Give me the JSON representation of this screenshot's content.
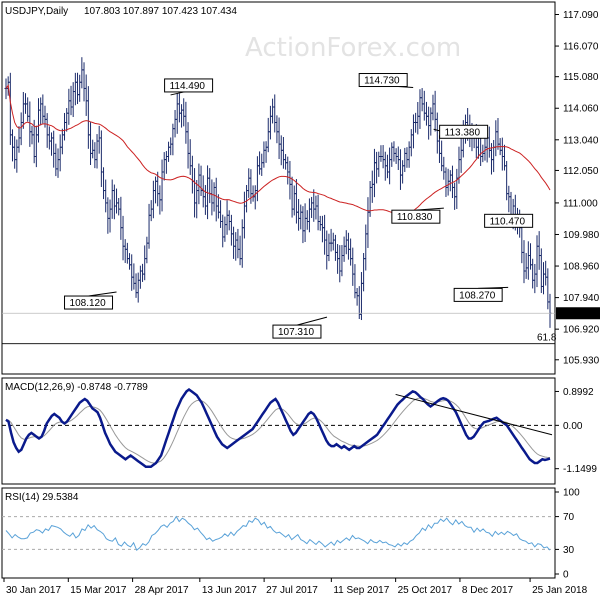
{
  "chart_data": {
    "type": "ohlc",
    "watermark": "ActionForex.com",
    "price_panel": {
      "title": "USDJPY,Daily",
      "ohlc_text": "107.803 107.897 107.423 107.434",
      "y_ticks": [
        "117.090",
        "116.070",
        "115.080",
        "114.060",
        "113.040",
        "112.050",
        "111.000",
        "109.980",
        "108.960",
        "107.940",
        "106.920",
        "105.930"
      ],
      "ylim": [
        105.6,
        117.3
      ],
      "current_price": "107.434",
      "fib_label": "61.8",
      "fib_level": 106.45,
      "moving_average_color": "#cc2222",
      "bar_color": "#1a2a6a",
      "annotations": [
        {
          "text": "114.490",
          "x": "2017-05-24",
          "y": 114.49
        },
        {
          "text": "108.120",
          "x": "2017-04-17",
          "y": 108.12
        },
        {
          "text": "107.310",
          "x": "2017-09-08",
          "y": 107.31
        },
        {
          "text": "114.730",
          "x": "2017-11-06",
          "y": 114.73
        },
        {
          "text": "113.380",
          "x": "2017-11-20",
          "y": 113.38
        },
        {
          "text": "110.830",
          "x": "2017-11-27",
          "y": 110.83
        },
        {
          "text": "110.470",
          "x": "2017-12-29",
          "y": 110.47
        },
        {
          "text": "108.270",
          "x": "2018-01-10",
          "y": 108.27
        }
      ]
    },
    "macd_panel": {
      "label": "MACD(12,26,9) -0.8748 -0.7789",
      "y_ticks": [
        "0.8992",
        "0.00",
        "-1.1499"
      ],
      "ylim": [
        -1.45,
        1.15
      ],
      "macd_color": "#0a1a8c",
      "signal_color": "#999999",
      "trendline_start": {
        "x": "2017-10-25",
        "y": 0.82
      },
      "trendline_end": {
        "x": "2018-02-09",
        "y": -0.25
      }
    },
    "rsi_panel": {
      "label": "RSI(14) 29.5384",
      "y_ticks": [
        "100",
        "70",
        "30",
        "0"
      ],
      "ylim": [
        0,
        100
      ],
      "levels": [
        70,
        30
      ],
      "rsi_color": "#5aa2d8"
    },
    "x_ticks": [
      "30 Jan 2017",
      "15 Mar 2017",
      "28 Apr 2017",
      "13 Jun 2017",
      "27 Jul 2017",
      "11 Sep 2017",
      "25 Oct 2017",
      "8 Dec 2017",
      "25 Jan 2018"
    ],
    "close": [
      114.7,
      114.9,
      113.2,
      112.8,
      112.4,
      112.8,
      113.1,
      113.6,
      114.2,
      114.2,
      113.8,
      113.3,
      113.2,
      112.5,
      113.2,
      114.0,
      114.2,
      113.8,
      113.7,
      113.2,
      113.0,
      113.1,
      112.6,
      112.1,
      112.4,
      112.8,
      113.2,
      113.6,
      113.9,
      114.3,
      114.1,
      114.6,
      114.9,
      114.5,
      114.9,
      115.3,
      114.7,
      114.3,
      113.2,
      112.6,
      112.7,
      112.4,
      113.0,
      113.1,
      112.0,
      111.4,
      111.0,
      110.5,
      110.8,
      111.4,
      110.9,
      111.0,
      110.8,
      110.2,
      109.6,
      109.5,
      109.2,
      109.0,
      108.6,
      108.4,
      108.1,
      108.5,
      108.8,
      108.7,
      109.2,
      109.7,
      110.6,
      110.8,
      111.4,
      111.7,
      111.3,
      111.1,
      112.0,
      112.4,
      112.5,
      112.8,
      112.9,
      113.4,
      113.7,
      114.2,
      113.9,
      114.0,
      113.8,
      113.3,
      112.6,
      112.2,
      111.7,
      111.0,
      111.4,
      111.9,
      111.4,
      111.2,
      110.9,
      111.8,
      111.3,
      111.0,
      111.5,
      110.9,
      110.7,
      110.4,
      109.9,
      110.3,
      110.6,
      110.4,
      110.0,
      109.6,
      109.8,
      109.5,
      109.2,
      110.2,
      110.9,
      111.4,
      111.8,
      111.3,
      111.2,
      111.4,
      112.2,
      112.1,
      112.3,
      112.7,
      112.8,
      113.3,
      113.8,
      114.1,
      113.6,
      113.3,
      112.9,
      112.7,
      112.4,
      112.3,
      112.0,
      111.6,
      110.8,
      111.3,
      110.7,
      110.5,
      110.7,
      110.1,
      110.5,
      110.4,
      110.8,
      111.0,
      110.8,
      110.9,
      110.4,
      110.3,
      110.2,
      109.8,
      109.3,
      109.7,
      109.7,
      109.8,
      109.4,
      109.2,
      108.8,
      109.3,
      109.6,
      109.8,
      109.5,
      109.2,
      108.7,
      108.1,
      108.0,
      107.4,
      108.4,
      109.2,
      110.0,
      110.7,
      111.5,
      111.6,
      112.3,
      112.1,
      112.5,
      112.5,
      112.4,
      112.2,
      112.0,
      112.4,
      112.8,
      112.6,
      112.5,
      112.4,
      111.9,
      112.2,
      112.6,
      112.4,
      112.8,
      113.2,
      113.6,
      113.6,
      113.8,
      114.4,
      114.2,
      113.9,
      113.8,
      113.5,
      113.9,
      114.2,
      113.7,
      113.0,
      112.6,
      112.2,
      112.0,
      111.5,
      111.7,
      111.9,
      111.5,
      111.2,
      111.8,
      112.4,
      112.7,
      113.2,
      113.6,
      113.4,
      113.1,
      113.3,
      113.2,
      112.8,
      113.2,
      112.5,
      112.6,
      112.8,
      113.1,
      112.7,
      112.4,
      112.8,
      113.3,
      112.9,
      112.7,
      112.5,
      112.2,
      111.3,
      111.2,
      110.5,
      110.9,
      110.3,
      110.6,
      110.2,
      109.4,
      108.8,
      108.9,
      109.3,
      109.0,
      108.5,
      108.7,
      109.6,
      109.3,
      108.3,
      108.7,
      108.6,
      107.8,
      107.434
    ],
    "macd": [
      0.15,
      0.1,
      -0.2,
      -0.45,
      -0.6,
      -0.7,
      -0.65,
      -0.5,
      -0.35,
      -0.25,
      -0.2,
      -0.25,
      -0.3,
      -0.35,
      -0.3,
      -0.15,
      0.05,
      0.15,
      0.25,
      0.3,
      0.25,
      0.2,
      0.1,
      0.05,
      0.1,
      0.2,
      0.3,
      0.4,
      0.5,
      0.6,
      0.65,
      0.7,
      0.65,
      0.55,
      0.45,
      0.4,
      0.35,
      0.2,
      0.0,
      -0.2,
      -0.35,
      -0.5,
      -0.6,
      -0.7,
      -0.75,
      -0.8,
      -0.85,
      -0.9,
      -0.85,
      -0.8,
      -0.85,
      -0.9,
      -0.95,
      -1.0,
      -1.05,
      -1.1,
      -1.1,
      -1.1,
      -1.05,
      -1.0,
      -0.9,
      -0.8,
      -0.6,
      -0.4,
      -0.2,
      0.0,
      0.2,
      0.4,
      0.55,
      0.7,
      0.8,
      0.9,
      0.95,
      0.9,
      0.85,
      0.8,
      0.7,
      0.6,
      0.45,
      0.3,
      0.15,
      0.0,
      -0.15,
      -0.3,
      -0.4,
      -0.5,
      -0.55,
      -0.6,
      -0.55,
      -0.5,
      -0.45,
      -0.4,
      -0.35,
      -0.3,
      -0.25,
      -0.2,
      -0.15,
      -0.1,
      0.0,
      0.1,
      0.2,
      0.3,
      0.4,
      0.5,
      0.6,
      0.65,
      0.7,
      0.6,
      0.45,
      0.3,
      0.15,
      0.0,
      -0.15,
      -0.25,
      -0.2,
      -0.1,
      0.0,
      0.1,
      0.2,
      0.3,
      0.35,
      0.3,
      0.2,
      0.05,
      -0.1,
      -0.25,
      -0.4,
      -0.5,
      -0.55,
      -0.55,
      -0.5,
      -0.55,
      -0.6,
      -0.55,
      -0.6,
      -0.65,
      -0.6,
      -0.55,
      -0.6,
      -0.6,
      -0.55,
      -0.5,
      -0.45,
      -0.4,
      -0.35,
      -0.3,
      -0.25,
      -0.15,
      -0.05,
      0.05,
      0.15,
      0.25,
      0.35,
      0.45,
      0.55,
      0.62,
      0.68,
      0.75,
      0.8,
      0.85,
      0.9,
      0.88,
      0.82,
      0.75,
      0.7,
      0.62,
      0.55,
      0.5,
      0.55,
      0.6,
      0.65,
      0.7,
      0.72,
      0.7,
      0.65,
      0.55,
      0.45,
      0.35,
      0.2,
      0.05,
      -0.1,
      -0.25,
      -0.35,
      -0.35,
      -0.3,
      -0.2,
      -0.1,
      0.0,
      0.08,
      0.1,
      0.12,
      0.15,
      0.18,
      0.2,
      0.15,
      0.1,
      0.05,
      0.0,
      -0.1,
      -0.2,
      -0.3,
      -0.4,
      -0.5,
      -0.6,
      -0.7,
      -0.8,
      -0.9,
      -0.95,
      -1.0,
      -1.0,
      -0.95,
      -0.9,
      -0.92,
      -0.9,
      -0.88
    ],
    "rsi": [
      53,
      49,
      44,
      48,
      45,
      43,
      43,
      44,
      50,
      51,
      54,
      53,
      50,
      55,
      53,
      59,
      58,
      57,
      55,
      51,
      48,
      46,
      50,
      44,
      47,
      55,
      53,
      60,
      56,
      59,
      54,
      52,
      49,
      43,
      41,
      40,
      44,
      36,
      34,
      39,
      35,
      33,
      38,
      29,
      32,
      37,
      35,
      39,
      47,
      49,
      53,
      58,
      60,
      57,
      62,
      64,
      70,
      64,
      68,
      66,
      62,
      59,
      54,
      56,
      51,
      47,
      42,
      44,
      40,
      42,
      43,
      45,
      49,
      46,
      51,
      47,
      52,
      55,
      59,
      58,
      65,
      63,
      68,
      66,
      60,
      63,
      56,
      58,
      53,
      50,
      51,
      48,
      45,
      48,
      42,
      45,
      48,
      42,
      40,
      37,
      42,
      39,
      36,
      40,
      37,
      33,
      36,
      39,
      35,
      41,
      38,
      41,
      44,
      41,
      47,
      43,
      44,
      42,
      40,
      37,
      42,
      39,
      38,
      41,
      38,
      39,
      36,
      35,
      33,
      37,
      34,
      38,
      36,
      40,
      42,
      47,
      50,
      56,
      53,
      60,
      56,
      62,
      62,
      67,
      64,
      68,
      63,
      60,
      66,
      61,
      64,
      59,
      57,
      57,
      51,
      56,
      52,
      55,
      51,
      50,
      46,
      52,
      48,
      51,
      48,
      52,
      50,
      47,
      49,
      43,
      41,
      40,
      37,
      38,
      33,
      37,
      36,
      32,
      33,
      29
    ],
    "rsi_ylim": [
      0,
      100
    ]
  }
}
